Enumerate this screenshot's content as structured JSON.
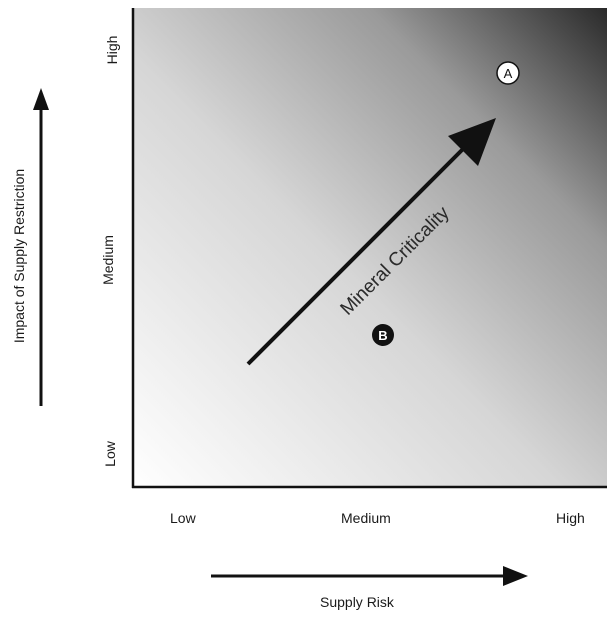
{
  "chart_data": {
    "type": "scatter",
    "title": "",
    "xlabel": "Supply Risk",
    "ylabel": "Impact of Supply Restriction",
    "x_ticks": [
      "Low",
      "Medium",
      "High"
    ],
    "y_ticks": [
      "Low",
      "Medium",
      "High"
    ],
    "diagonal_label": "Mineral Criticality",
    "points": [
      {
        "label": "A",
        "x": 0.79,
        "y": 0.87,
        "style": "white-circle"
      },
      {
        "label": "B",
        "x": 0.54,
        "y": 0.32,
        "style": "black-circle"
      }
    ],
    "background": "gradient white (low-low) to black (high-high)"
  }
}
